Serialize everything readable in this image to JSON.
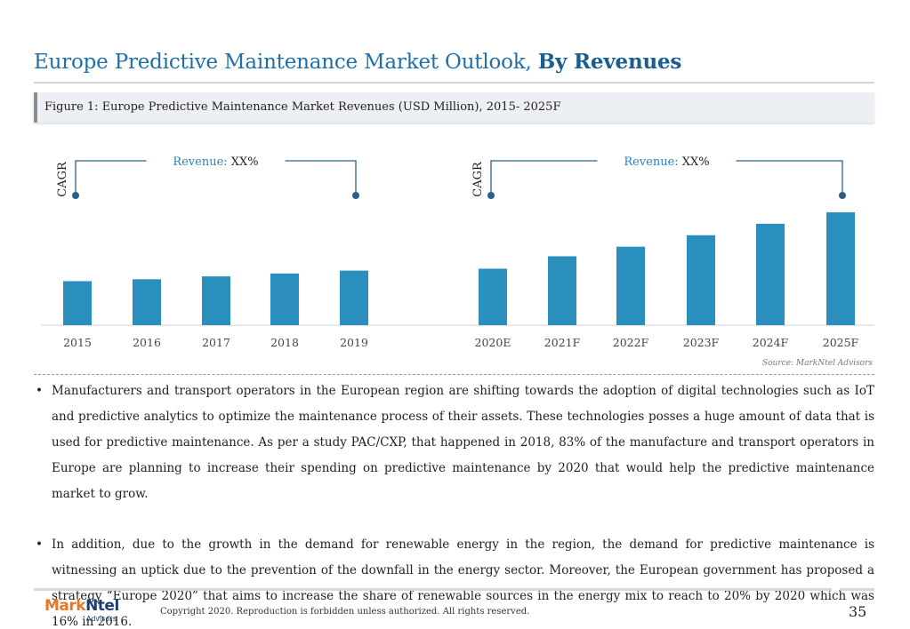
{
  "title": {
    "main": "Europe Predictive Maintenance Market Outlook,",
    "emphasis": "By Revenues"
  },
  "figure_caption": "Figure 1: Europe Predictive Maintenance Market Revenues (USD Million), 2015- 2025F",
  "colors": {
    "bar": "#2a8fbd",
    "bracket": "#2e5f86",
    "title": "#1f6fa8",
    "revenue_label": "#2a7fc0"
  },
  "chart_data": {
    "type": "bar",
    "categories": [
      "2015",
      "2016",
      "2017",
      "2018",
      "2019",
      "2020E",
      "2021F",
      "2022F",
      "2023F",
      "2024F",
      "2025F"
    ],
    "values": [
      46,
      48,
      51,
      54,
      57,
      59,
      72,
      82,
      94,
      106,
      118
    ],
    "ylim": [
      0,
      130
    ],
    "grid": false,
    "axis_values_shown": false,
    "annotations": [
      {
        "label": "Revenue:",
        "value": "XX%",
        "side_label": "CAGR",
        "from": "2015",
        "to": "2019"
      },
      {
        "label": "Revenue:",
        "value": "XX%",
        "side_label": "CAGR",
        "from": "2020E",
        "to": "2025F"
      }
    ]
  },
  "source": "Source: MarkNtel Advisors",
  "bullets": [
    "Manufacturers and transport operators in the European region are shifting towards the adoption of digital technologies such as IoT and predictive analytics to optimize the maintenance process of their assets. These technologies posses a huge amount of data that is used for predictive maintenance. As per a study PAC/CXP, that happened in 2018, 83% of the manufacture and transport operators in Europe are planning to increase their spending on predictive maintenance by 2020 that would help the predictive maintenance market to grow.",
    "In addition, due to the growth in the demand for renewable energy in the region, the demand for predictive maintenance is witnessing an uptick due to the prevention of the downfall in the energy sector. Moreover, the European government has proposed a strategy “Europe 2020” that aims to increase the share of renewable sources in the energy mix to reach to 20% by 2020 which was 16% in 2016."
  ],
  "footer": {
    "logo_main": "Mark",
    "logo_accent": "Ntel",
    "logo_sub": "Advisors",
    "copyright": "Copyright 2020. Reproduction is forbidden unless authorized. All rights reserved.",
    "page_number": "35"
  }
}
